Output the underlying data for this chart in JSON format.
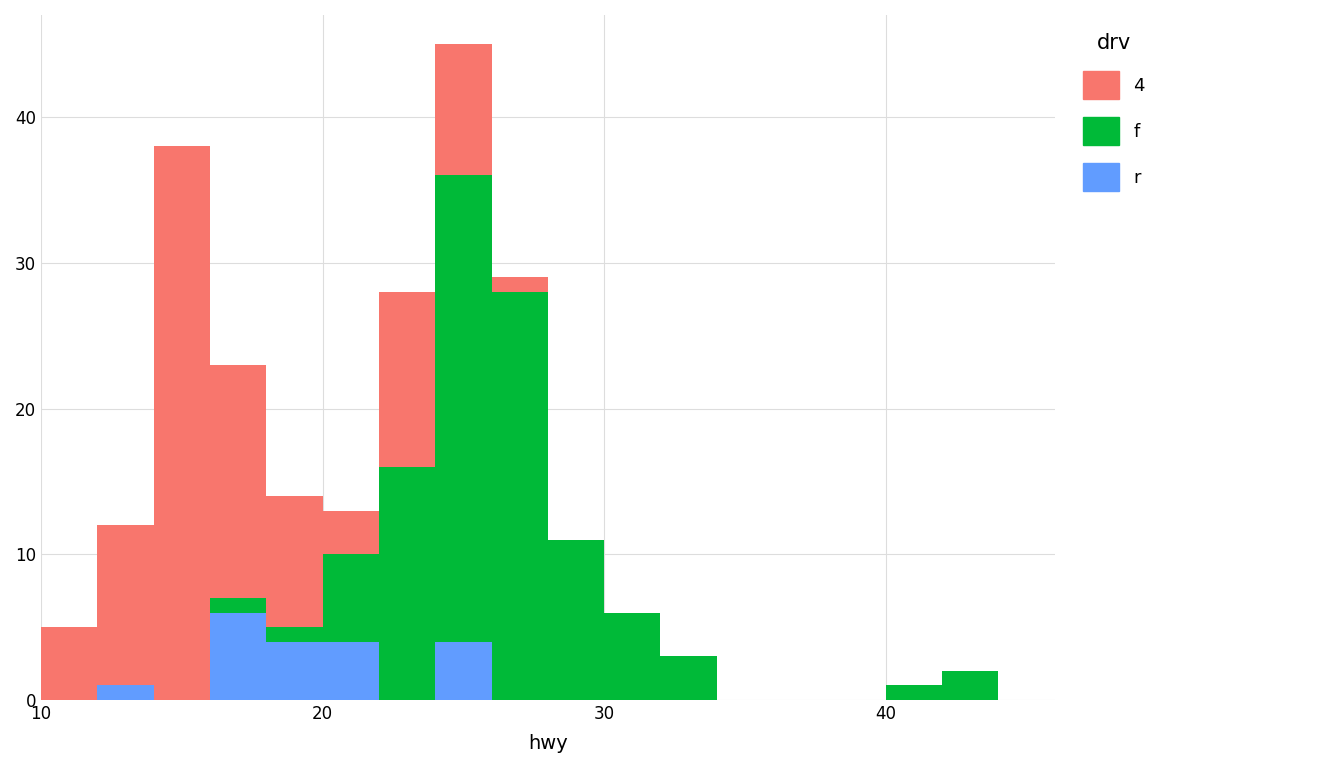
{
  "title": "",
  "xlabel": "hwy",
  "ylabel": "",
  "legend_title": "drv",
  "background_color": "#ffffff",
  "panel_background": "#ffffff",
  "grid_color": "#dddddd",
  "colors": {
    "4": "#F8766D",
    "f": "#00BA38",
    "r": "#619CFF"
  },
  "bins": [
    10,
    12,
    14,
    16,
    18,
    20,
    22,
    24,
    26,
    28,
    30,
    32,
    34,
    36,
    38,
    40,
    42,
    44,
    46
  ],
  "counts": {
    "4": [
      5,
      12,
      38,
      23,
      14,
      13,
      28,
      45,
      29,
      0,
      0,
      0,
      0,
      0,
      0,
      0,
      0,
      0
    ],
    "f": [
      0,
      0,
      0,
      7,
      5,
      10,
      16,
      36,
      28,
      11,
      6,
      3,
      0,
      0,
      0,
      1,
      2,
      0
    ],
    "r": [
      0,
      1,
      0,
      6,
      4,
      4,
      0,
      4,
      0,
      0,
      0,
      0,
      0,
      0,
      0,
      0,
      0,
      0
    ]
  },
  "xlim": [
    10,
    46
  ],
  "ylim": [
    0,
    47
  ],
  "yticks": [
    0,
    10,
    20,
    30,
    40
  ],
  "xticks": [
    10,
    20,
    30,
    40
  ],
  "figsize": [
    13.44,
    7.68
  ],
  "dpi": 100,
  "alpha": 1.0,
  "plot_order": [
    "4",
    "f",
    "r"
  ]
}
